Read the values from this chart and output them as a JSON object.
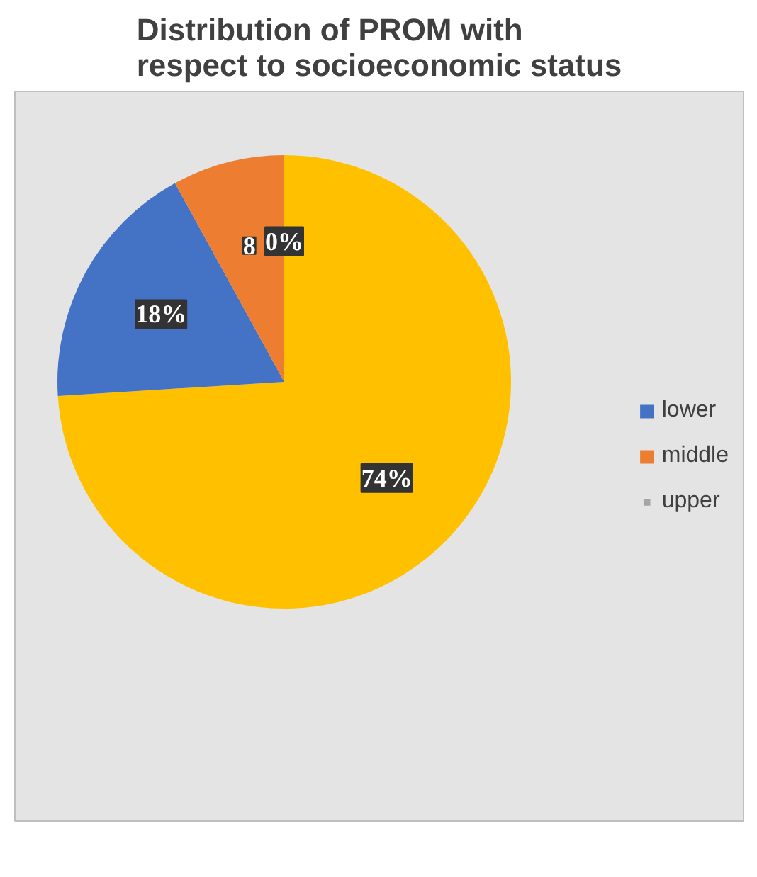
{
  "chart_data": {
    "type": "pie",
    "title": "Distribution of PROM with respect to socioeconomic status",
    "categories": [
      null,
      "lower",
      "middle",
      "upper"
    ],
    "values": [
      74,
      18,
      8,
      0
    ],
    "colors": [
      "#ffc000",
      "#4472c4",
      "#ed7d31",
      "#a5a5a5"
    ],
    "value_labels": [
      "74%",
      "18%",
      "8",
      "0%"
    ],
    "legend": "right"
  }
}
